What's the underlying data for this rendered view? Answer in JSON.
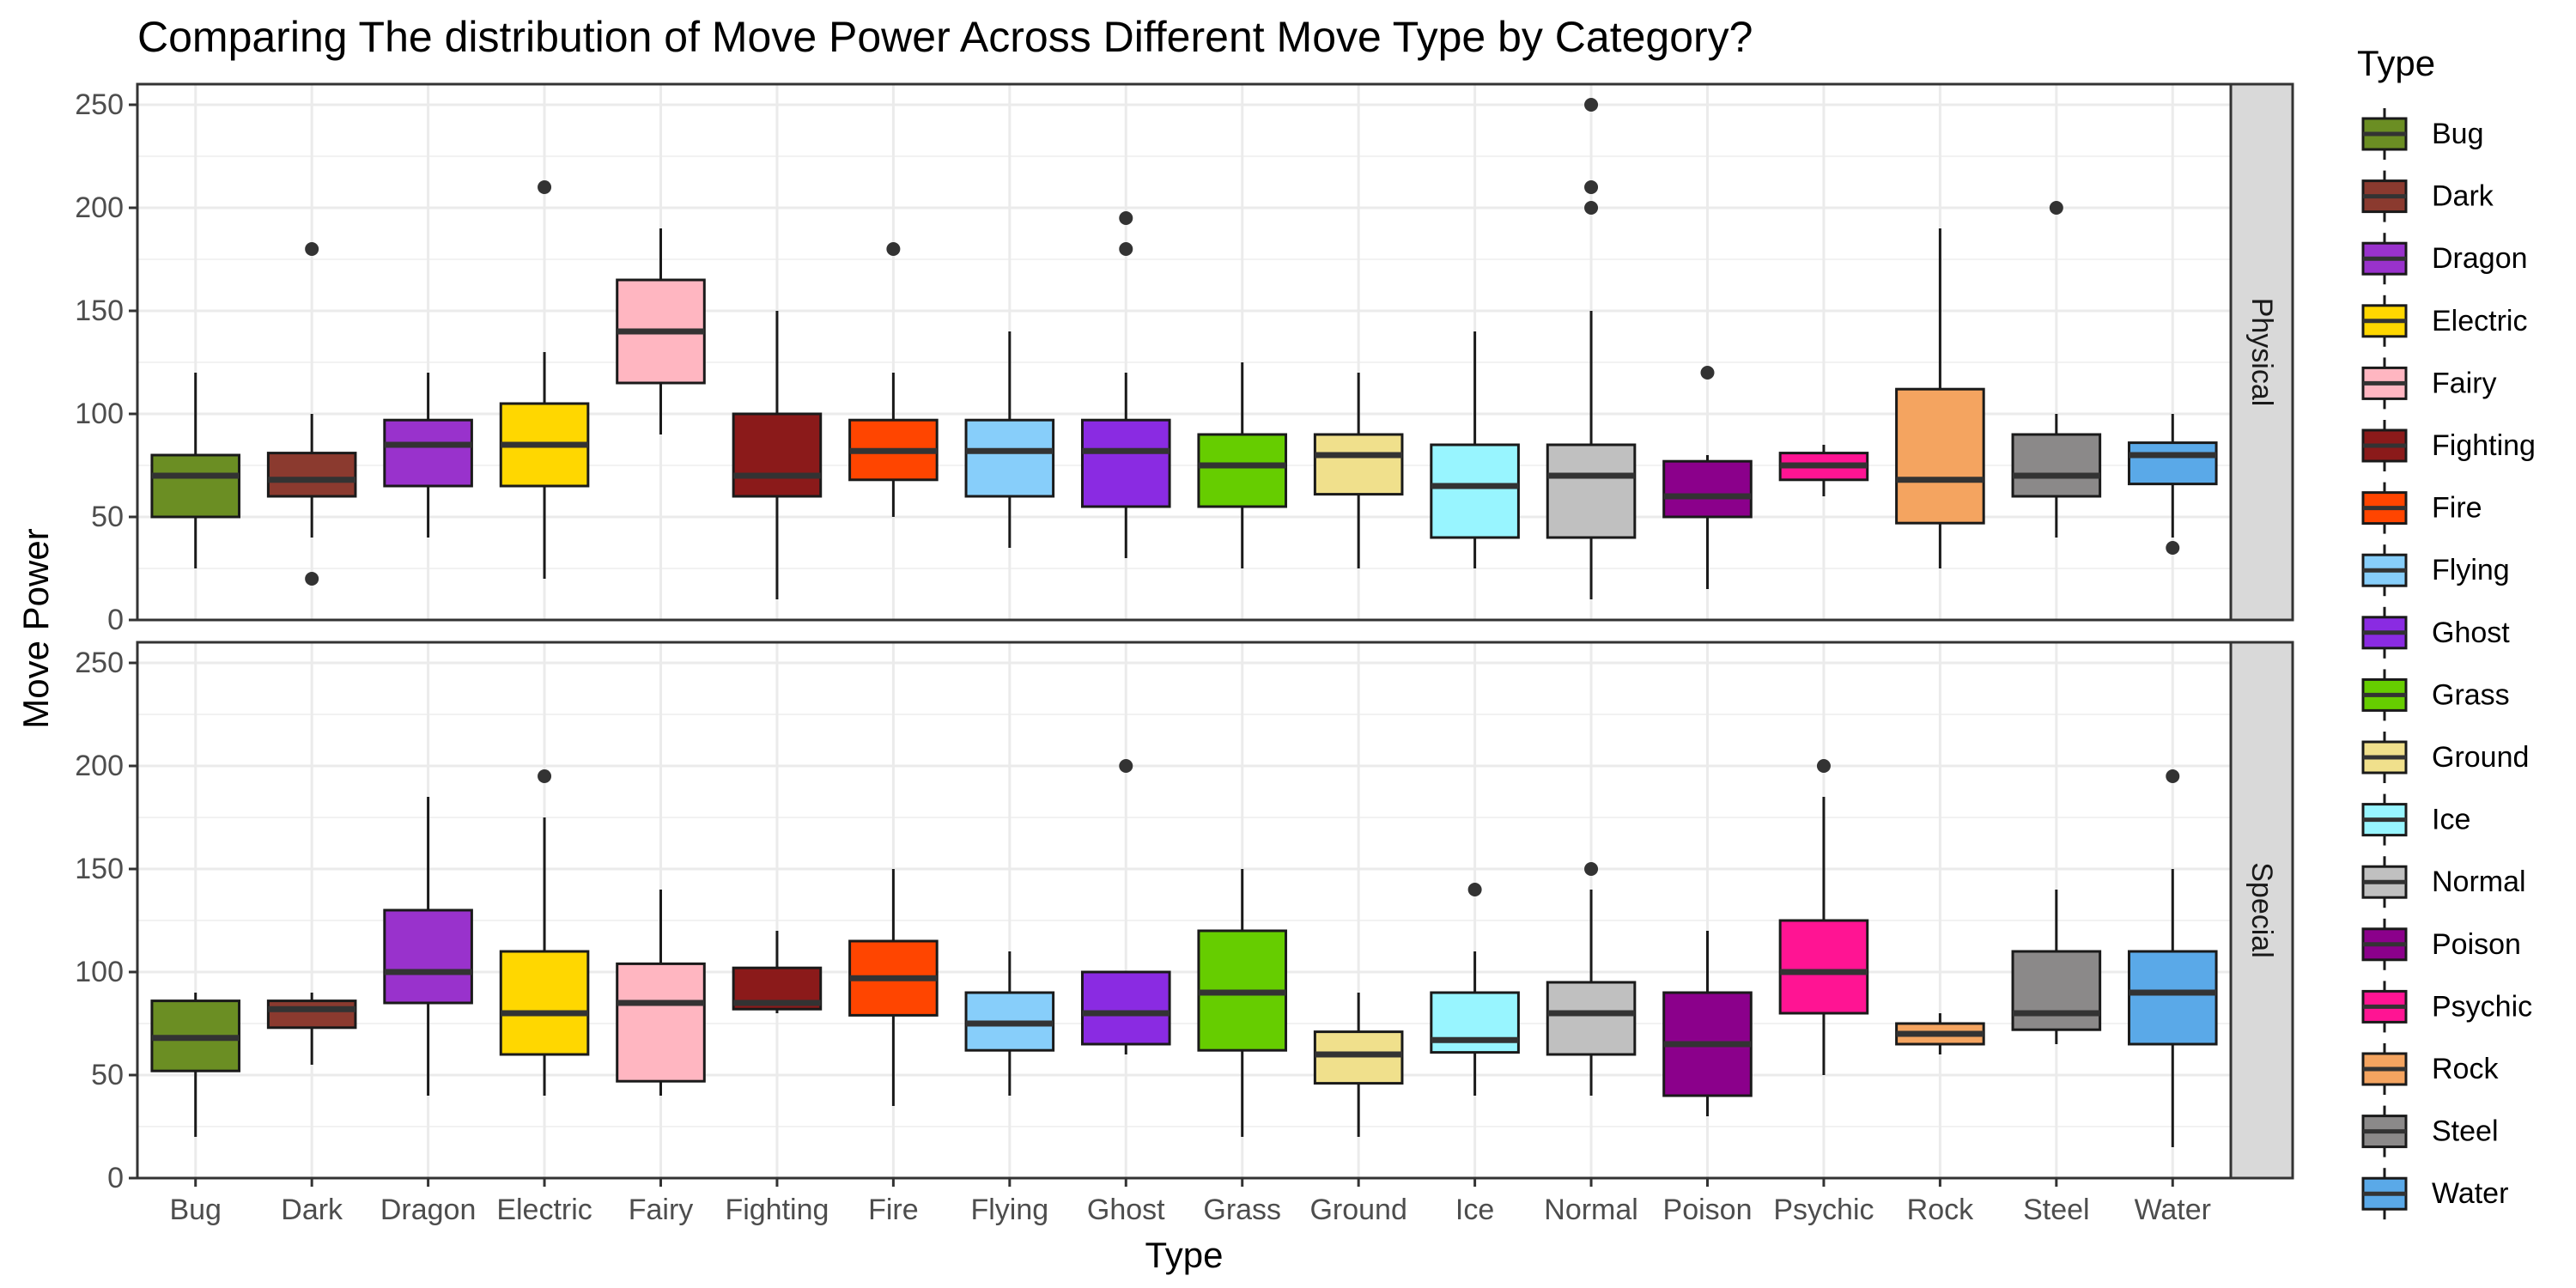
{
  "chart_data": {
    "type": "boxplot",
    "title": "Comparing The distribution of Move Power Across Different Move Type by Category?",
    "xlabel": "Type",
    "ylabel": "Move Power",
    "ylim": [
      0,
      260
    ],
    "yticks": [
      0,
      50,
      100,
      150,
      200,
      250
    ],
    "grid": true,
    "legend": {
      "title": "Type",
      "placement": "right"
    },
    "categories": [
      "Bug",
      "Dark",
      "Dragon",
      "Electric",
      "Fairy",
      "Fighting",
      "Fire",
      "Flying",
      "Ghost",
      "Grass",
      "Ground",
      "Ice",
      "Normal",
      "Poison",
      "Psychic",
      "Rock",
      "Steel",
      "Water"
    ],
    "colors": {
      "Bug": "#6b8e23",
      "Dark": "#8b3a2f",
      "Dragon": "#9932cc",
      "Electric": "#ffd700",
      "Fairy": "#ffb6c1",
      "Fighting": "#8b1a1a",
      "Fire": "#ff4500",
      "Flying": "#87cefa",
      "Ghost": "#8a2be2",
      "Grass": "#66cd00",
      "Ground": "#f0e08c",
      "Ice": "#98f5ff",
      "Normal": "#c0c0c0",
      "Poison": "#8b008b",
      "Psychic": "#ff1493",
      "Rock": "#f4a460",
      "Steel": "#8b8989",
      "Water": "#5aa9e8"
    },
    "panels": [
      {
        "label": "Physical",
        "boxes": [
          {
            "type": "Bug",
            "low": 25,
            "q1": 50,
            "median": 70,
            "q3": 80,
            "high": 120,
            "outliers": []
          },
          {
            "type": "Dark",
            "low": 40,
            "q1": 60,
            "median": 68,
            "q3": 81,
            "high": 100,
            "outliers": [
              20,
              180
            ]
          },
          {
            "type": "Dragon",
            "low": 40,
            "q1": 65,
            "median": 85,
            "q3": 97,
            "high": 120,
            "outliers": []
          },
          {
            "type": "Electric",
            "low": 20,
            "q1": 65,
            "median": 85,
            "q3": 105,
            "high": 130,
            "outliers": [
              210
            ]
          },
          {
            "type": "Fairy",
            "low": 90,
            "q1": 115,
            "median": 140,
            "q3": 165,
            "high": 190,
            "outliers": []
          },
          {
            "type": "Fighting",
            "low": 10,
            "q1": 60,
            "median": 70,
            "q3": 100,
            "high": 150,
            "outliers": []
          },
          {
            "type": "Fire",
            "low": 50,
            "q1": 68,
            "median": 82,
            "q3": 97,
            "high": 120,
            "outliers": [
              180
            ]
          },
          {
            "type": "Flying",
            "low": 35,
            "q1": 60,
            "median": 82,
            "q3": 97,
            "high": 140,
            "outliers": []
          },
          {
            "type": "Ghost",
            "low": 30,
            "q1": 55,
            "median": 82,
            "q3": 97,
            "high": 120,
            "outliers": [
              180,
              195
            ]
          },
          {
            "type": "Grass",
            "low": 25,
            "q1": 55,
            "median": 75,
            "q3": 90,
            "high": 125,
            "outliers": []
          },
          {
            "type": "Ground",
            "low": 25,
            "q1": 61,
            "median": 80,
            "q3": 90,
            "high": 120,
            "outliers": []
          },
          {
            "type": "Ice",
            "low": 25,
            "q1": 40,
            "median": 65,
            "q3": 85,
            "high": 140,
            "outliers": []
          },
          {
            "type": "Normal",
            "low": 10,
            "q1": 40,
            "median": 70,
            "q3": 85,
            "high": 150,
            "outliers": [
              200,
              210,
              250
            ]
          },
          {
            "type": "Poison",
            "low": 15,
            "q1": 50,
            "median": 60,
            "q3": 77,
            "high": 80,
            "outliers": [
              120
            ]
          },
          {
            "type": "Psychic",
            "low": 60,
            "q1": 68,
            "median": 75,
            "q3": 81,
            "high": 85,
            "outliers": []
          },
          {
            "type": "Rock",
            "low": 25,
            "q1": 47,
            "median": 68,
            "q3": 112,
            "high": 190,
            "outliers": []
          },
          {
            "type": "Steel",
            "low": 40,
            "q1": 60,
            "median": 70,
            "q3": 90,
            "high": 100,
            "outliers": [
              200
            ]
          },
          {
            "type": "Water",
            "low": 40,
            "q1": 66,
            "median": 80,
            "q3": 86,
            "high": 100,
            "outliers": [
              35
            ]
          }
        ]
      },
      {
        "label": "Special",
        "boxes": [
          {
            "type": "Bug",
            "low": 20,
            "q1": 52,
            "median": 68,
            "q3": 86,
            "high": 90,
            "outliers": []
          },
          {
            "type": "Dark",
            "low": 55,
            "q1": 73,
            "median": 82,
            "q3": 86,
            "high": 90,
            "outliers": []
          },
          {
            "type": "Dragon",
            "low": 40,
            "q1": 85,
            "median": 100,
            "q3": 130,
            "high": 185,
            "outliers": []
          },
          {
            "type": "Electric",
            "low": 40,
            "q1": 60,
            "median": 80,
            "q3": 110,
            "high": 175,
            "outliers": [
              195
            ]
          },
          {
            "type": "Fairy",
            "low": 40,
            "q1": 47,
            "median": 85,
            "q3": 104,
            "high": 140,
            "outliers": []
          },
          {
            "type": "Fighting",
            "low": 80,
            "q1": 82,
            "median": 85,
            "q3": 102,
            "high": 120,
            "outliers": []
          },
          {
            "type": "Fire",
            "low": 35,
            "q1": 79,
            "median": 97,
            "q3": 115,
            "high": 150,
            "outliers": []
          },
          {
            "type": "Flying",
            "low": 40,
            "q1": 62,
            "median": 75,
            "q3": 90,
            "high": 110,
            "outliers": []
          },
          {
            "type": "Ghost",
            "low": 60,
            "q1": 65,
            "median": 80,
            "q3": 100,
            "high": 100,
            "outliers": [
              200
            ]
          },
          {
            "type": "Grass",
            "low": 20,
            "q1": 62,
            "median": 90,
            "q3": 120,
            "high": 150,
            "outliers": []
          },
          {
            "type": "Ground",
            "low": 20,
            "q1": 46,
            "median": 60,
            "q3": 71,
            "high": 90,
            "outliers": []
          },
          {
            "type": "Ice",
            "low": 40,
            "q1": 61,
            "median": 67,
            "q3": 90,
            "high": 110,
            "outliers": [
              140
            ]
          },
          {
            "type": "Normal",
            "low": 40,
            "q1": 60,
            "median": 80,
            "q3": 95,
            "high": 140,
            "outliers": [
              150
            ]
          },
          {
            "type": "Poison",
            "low": 30,
            "q1": 40,
            "median": 65,
            "q3": 90,
            "high": 120,
            "outliers": []
          },
          {
            "type": "Psychic",
            "low": 50,
            "q1": 80,
            "median": 100,
            "q3": 125,
            "high": 185,
            "outliers": [
              200
            ]
          },
          {
            "type": "Rock",
            "low": 60,
            "q1": 65,
            "median": 70,
            "q3": 75,
            "high": 80,
            "outliers": []
          },
          {
            "type": "Steel",
            "low": 65,
            "q1": 72,
            "median": 80,
            "q3": 110,
            "high": 140,
            "outliers": []
          },
          {
            "type": "Water",
            "low": 15,
            "q1": 65,
            "median": 90,
            "q3": 110,
            "high": 150,
            "outliers": [
              195
            ]
          }
        ]
      }
    ]
  }
}
